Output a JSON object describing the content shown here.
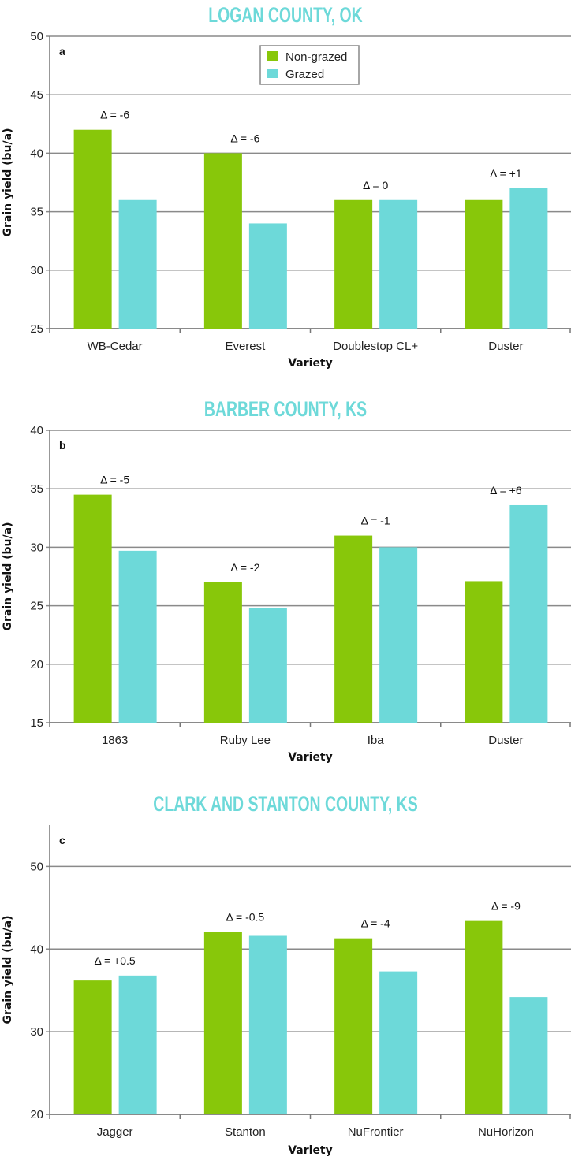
{
  "legend": {
    "items": [
      "Non-grazed",
      "Grazed"
    ],
    "position": "top-center",
    "colors": [
      "#88c70a",
      "#6dd9d9"
    ]
  },
  "chart_data": [
    {
      "type": "bar",
      "title": "LOGAN COUNTY, OK",
      "panel": "a",
      "xlabel": "Variety",
      "ylabel": "Grain yield (bu/a)",
      "ylim": [
        25,
        50
      ],
      "yticks": [
        25,
        30,
        35,
        40,
        45,
        50
      ],
      "grid": true,
      "categories": [
        "WB-Cedar",
        "Everest",
        "Doublestop CL+",
        "Duster"
      ],
      "series": [
        {
          "name": "Non-grazed",
          "values": [
            42,
            40,
            36,
            36
          ]
        },
        {
          "name": "Grazed",
          "values": [
            36,
            34,
            36,
            37
          ]
        }
      ],
      "annotations": [
        "Δ = -6",
        "Δ = -6",
        "Δ = 0",
        "Δ = +1"
      ]
    },
    {
      "type": "bar",
      "title": "BARBER COUNTY, KS",
      "panel": "b",
      "xlabel": "Variety",
      "ylabel": "Grain yield (bu/a)",
      "ylim": [
        15,
        40
      ],
      "yticks": [
        15,
        20,
        25,
        30,
        35,
        40
      ],
      "grid": true,
      "categories": [
        "1863",
        "Ruby Lee",
        "Iba",
        "Duster"
      ],
      "series": [
        {
          "name": "Non-grazed",
          "values": [
            34.5,
            27.0,
            31.0,
            27.1
          ]
        },
        {
          "name": "Grazed",
          "values": [
            29.7,
            24.8,
            30.0,
            33.6
          ]
        }
      ],
      "annotations": [
        "Δ = -5",
        "Δ = -2",
        "Δ = -1",
        "Δ = +6"
      ]
    },
    {
      "type": "bar",
      "title": "CLARK AND STANTON COUNTY, KS",
      "panel": "c",
      "xlabel": "Variety",
      "ylabel": "Grain yield (bu/a)",
      "ylim": [
        20,
        55
      ],
      "yticks": [
        20,
        30,
        40,
        50
      ],
      "grid": true,
      "categories": [
        "Jagger",
        "Stanton",
        "NuFrontier",
        "NuHorizon"
      ],
      "series": [
        {
          "name": "Non-grazed",
          "values": [
            36.2,
            42.1,
            41.3,
            43.4
          ]
        },
        {
          "name": "Grazed",
          "values": [
            36.8,
            41.6,
            37.3,
            34.2
          ]
        }
      ],
      "annotations": [
        "Δ = +0.5",
        "Δ = -0.5",
        "Δ = -4",
        "Δ = -9"
      ]
    }
  ]
}
